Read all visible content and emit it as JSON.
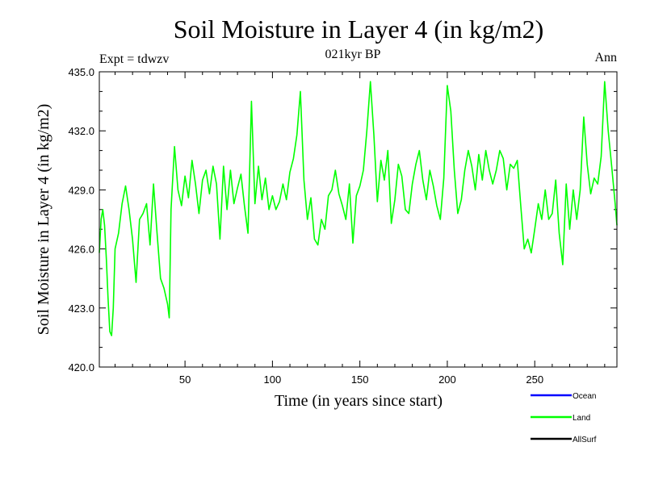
{
  "chart_data": {
    "type": "line",
    "title": "Soil Moisture in Layer 4 (in kg/m2)",
    "subtitle": "021kyr BP",
    "top_left_label": "Expt = tdwzv",
    "top_right_label": "Ann",
    "xlabel": "Time (in years since start)",
    "ylabel": "Soil Moisture in Layer 4 (in kg/m2)",
    "xlim": [
      1,
      297
    ],
    "ylim": [
      420.0,
      435.0
    ],
    "x_ticks": [
      50,
      100,
      150,
      200,
      250
    ],
    "x_tick_labels": [
      "50",
      "100",
      "150",
      "200",
      "250"
    ],
    "y_ticks": [
      420,
      423,
      426,
      429,
      432,
      435
    ],
    "y_tick_labels": [
      "420.0",
      "423.0",
      "426.0",
      "429.0",
      "432.0",
      "435.0"
    ],
    "legend": [
      {
        "name": "Ocean",
        "color": "#0000ff"
      },
      {
        "name": "Land",
        "color": "#00ff00"
      },
      {
        "name": "AllSurf",
        "color": "#000000"
      }
    ],
    "legend_position": "bottom-right",
    "series": [
      {
        "name": "Land",
        "color": "#00ff00",
        "x": [
          1,
          2,
          3,
          4,
          5,
          6,
          7,
          8,
          9,
          10,
          12,
          14,
          16,
          18,
          20,
          22,
          24,
          26,
          28,
          30,
          32,
          34,
          36,
          38,
          40,
          41,
          42,
          44,
          46,
          48,
          50,
          52,
          54,
          56,
          58,
          60,
          62,
          64,
          66,
          68,
          70,
          72,
          74,
          76,
          78,
          80,
          82,
          84,
          86,
          88,
          90,
          92,
          94,
          96,
          98,
          100,
          102,
          104,
          106,
          108,
          110,
          112,
          114,
          116,
          118,
          120,
          122,
          124,
          126,
          128,
          130,
          132,
          134,
          136,
          138,
          140,
          142,
          144,
          146,
          148,
          150,
          152,
          154,
          156,
          158,
          160,
          162,
          164,
          166,
          168,
          170,
          172,
          174,
          176,
          178,
          180,
          182,
          184,
          186,
          188,
          190,
          192,
          194,
          196,
          198,
          200,
          202,
          204,
          206,
          208,
          210,
          212,
          214,
          216,
          218,
          220,
          222,
          224,
          226,
          228,
          230,
          232,
          234,
          236,
          238,
          240,
          242,
          244,
          246,
          248,
          250,
          252,
          254,
          256,
          258,
          260,
          262,
          264,
          266,
          268,
          270,
          272,
          274,
          276,
          278,
          280,
          282,
          284,
          286,
          288,
          290,
          292,
          294,
          296,
          297
        ],
        "values": [
          425.8,
          427.5,
          428.0,
          427.2,
          425.5,
          423.5,
          421.8,
          421.6,
          423.0,
          426.0,
          426.8,
          428.3,
          429.2,
          428.0,
          426.5,
          424.3,
          427.5,
          427.8,
          428.3,
          426.2,
          429.3,
          426.8,
          424.5,
          424.0,
          423.2,
          422.5,
          428.0,
          431.2,
          429.0,
          428.2,
          429.7,
          428.6,
          430.5,
          429.3,
          427.8,
          429.5,
          430.0,
          428.8,
          430.2,
          429.3,
          426.5,
          430.2,
          428.0,
          430.0,
          428.3,
          429.1,
          429.8,
          428.2,
          426.8,
          433.5,
          428.3,
          430.2,
          428.5,
          429.6,
          428.0,
          428.7,
          428.0,
          428.4,
          429.3,
          428.5,
          429.9,
          430.6,
          431.8,
          434.0,
          429.5,
          427.5,
          428.6,
          426.5,
          426.2,
          427.5,
          427.0,
          428.7,
          429.0,
          430.0,
          428.8,
          428.2,
          427.5,
          429.3,
          426.3,
          428.7,
          429.2,
          430.0,
          432.0,
          434.5,
          431.8,
          428.4,
          430.5,
          429.5,
          431.0,
          427.3,
          428.5,
          430.3,
          429.7,
          428.0,
          427.8,
          429.3,
          430.3,
          431.0,
          429.5,
          428.5,
          430.0,
          429.2,
          428.2,
          427.5,
          429.6,
          434.3,
          433.0,
          430.0,
          427.8,
          428.5,
          430.0,
          431.0,
          430.2,
          429.0,
          430.8,
          429.5,
          431.0,
          430.0,
          429.3,
          430.0,
          431.0,
          430.6,
          429.0,
          430.3,
          430.1,
          430.5,
          428.2,
          426.0,
          426.5,
          425.8,
          427.0,
          428.3,
          427.5,
          429.0,
          427.5,
          427.8,
          429.5,
          426.8,
          425.2,
          429.3,
          427.0,
          429.0,
          427.5,
          429.0,
          432.7,
          430.3,
          428.8,
          429.6,
          429.3,
          430.7,
          434.5,
          432.0,
          430.2,
          428.3,
          427.2
        ]
      },
      {
        "name": "Ocean",
        "color": "#0000ff",
        "x": [],
        "values": []
      },
      {
        "name": "AllSurf",
        "color": "#000000",
        "x": [],
        "values": []
      }
    ]
  }
}
